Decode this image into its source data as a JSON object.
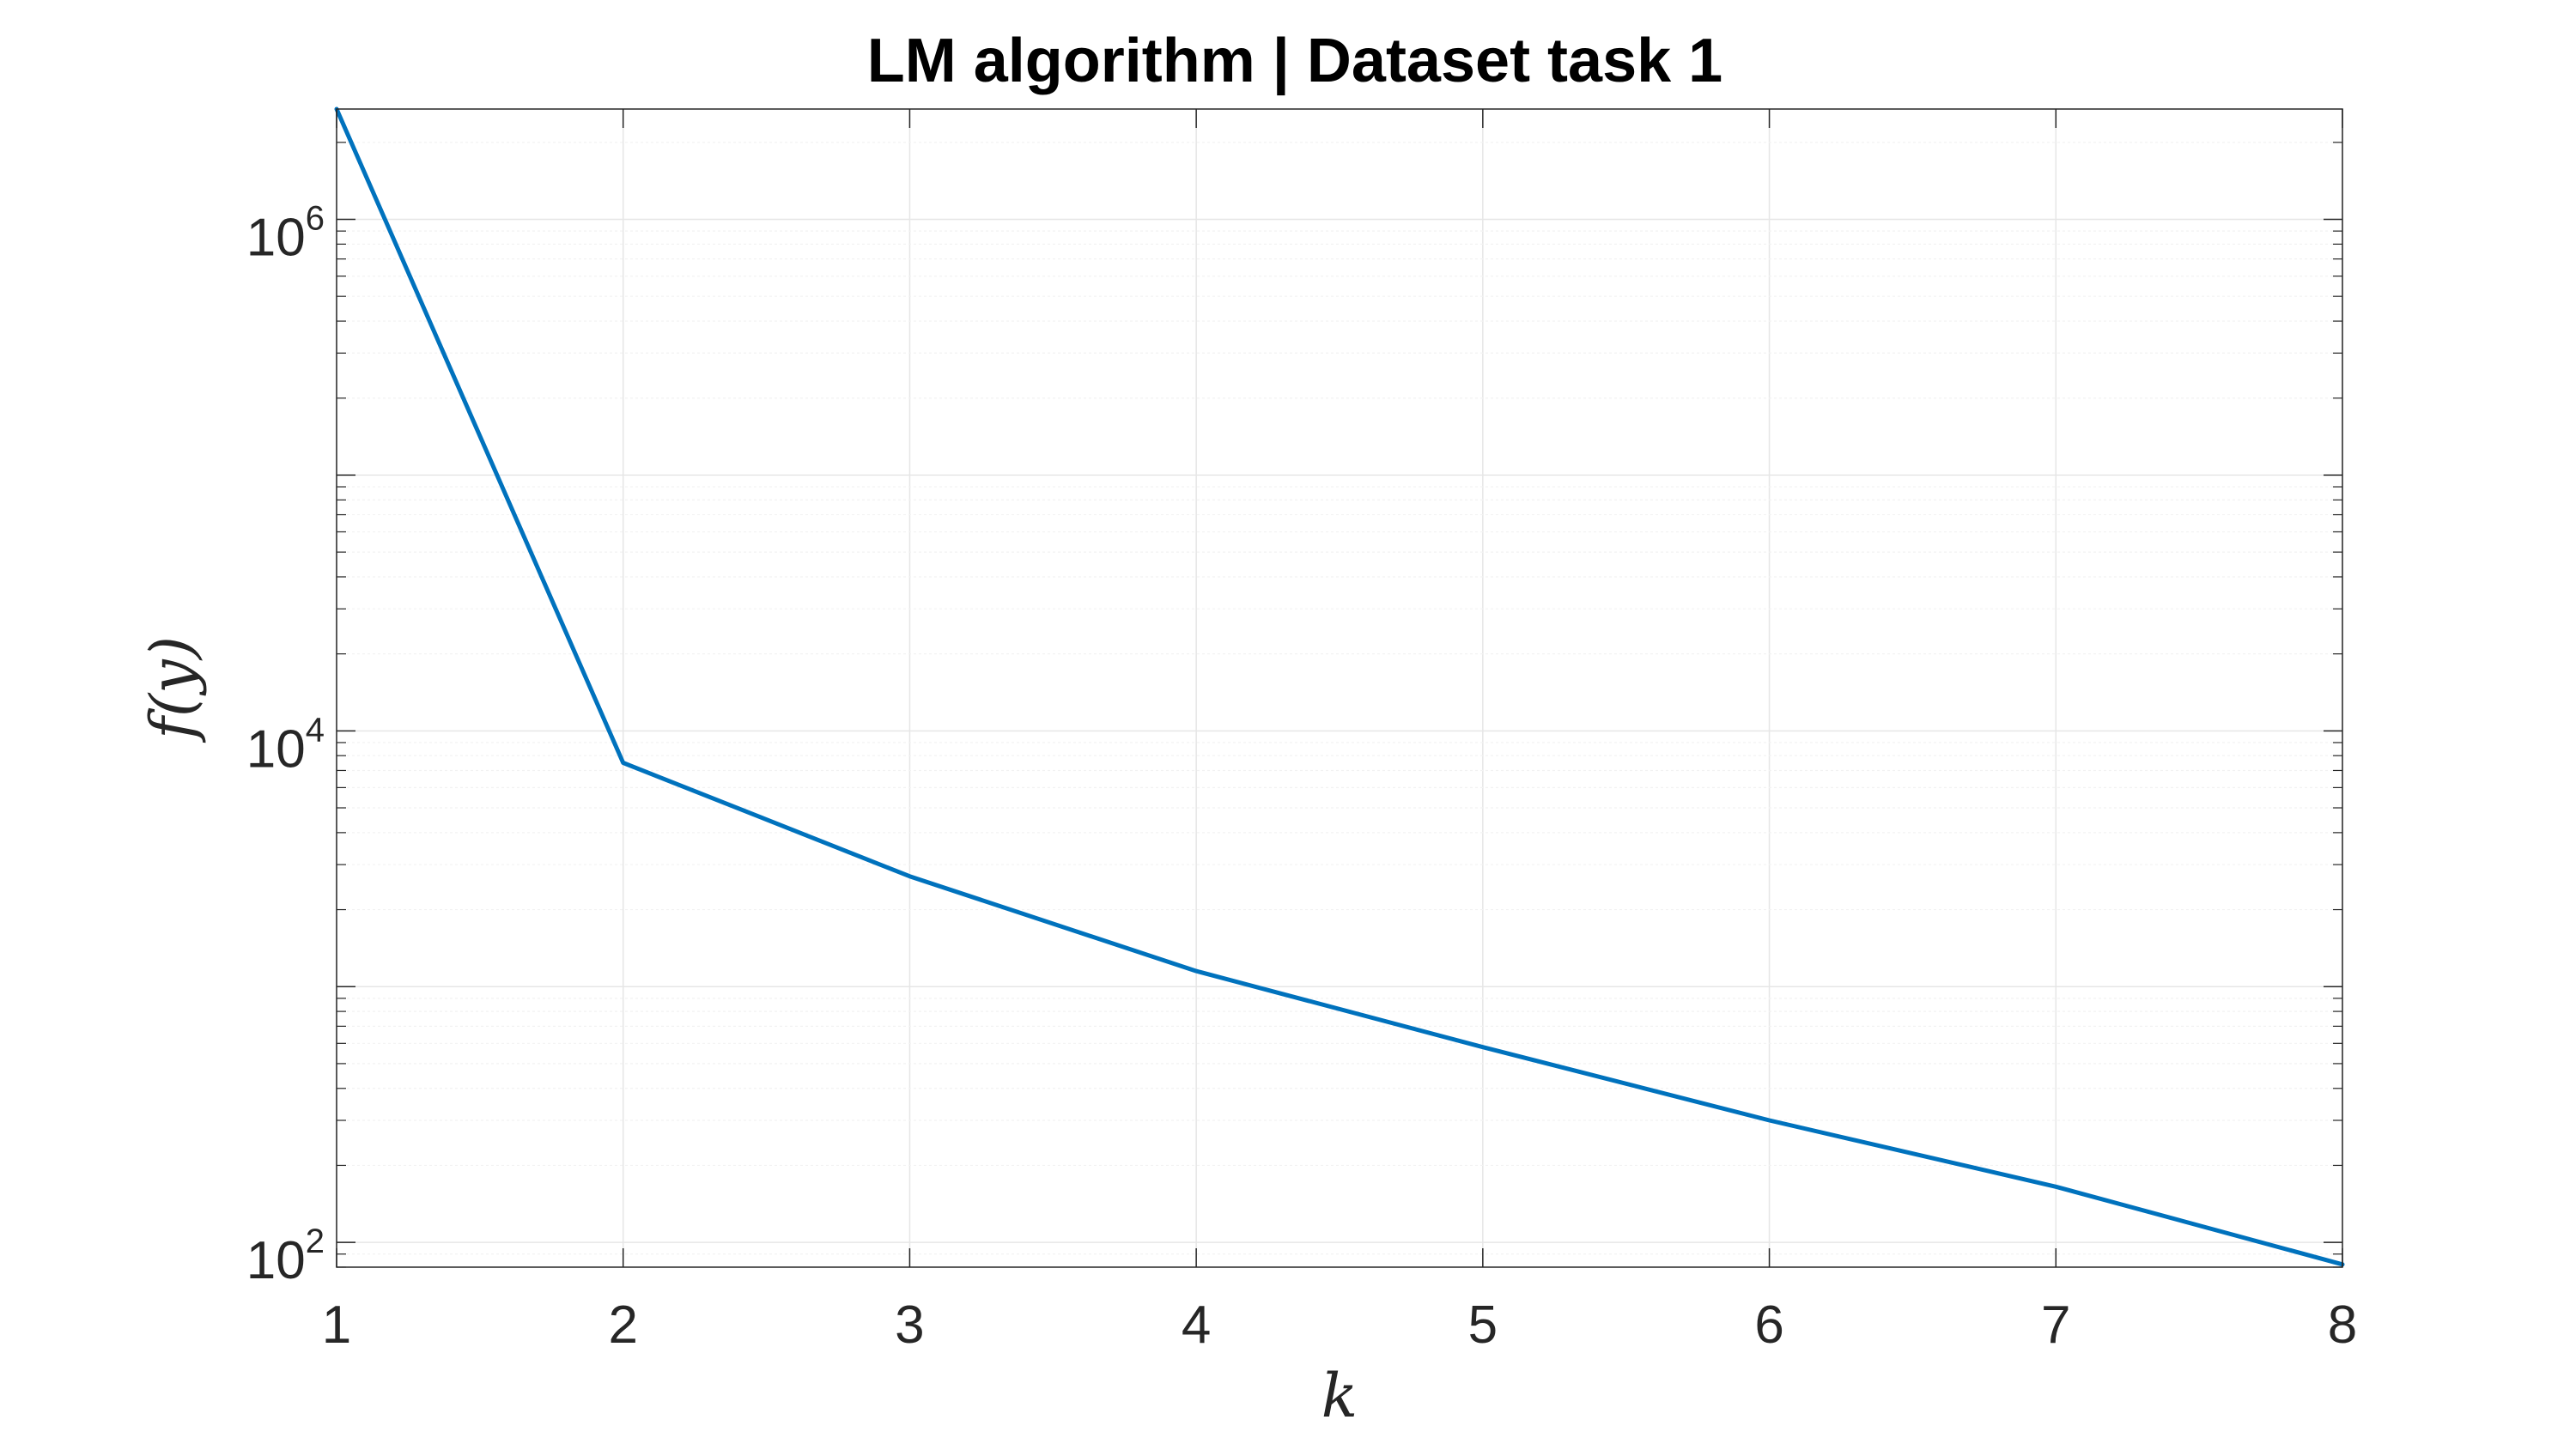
{
  "chart_data": {
    "type": "line",
    "title": "LM algorithm | Dataset task 1",
    "xlabel": "k",
    "ylabel": "f(y)",
    "xlim": [
      1,
      8
    ],
    "ylim": [
      80,
      2700000
    ],
    "yscale": "log",
    "grid": true,
    "xticks": [
      1,
      2,
      3,
      4,
      5,
      6,
      7,
      8
    ],
    "yticks": [
      {
        "value": 100,
        "base": "10",
        "exp": "2"
      },
      {
        "value": 10000,
        "base": "10",
        "exp": "4"
      },
      {
        "value": 1000000,
        "base": "10",
        "exp": "6"
      }
    ],
    "series": [
      {
        "color": "#0072BD",
        "x": [
          1,
          2,
          3,
          4,
          5,
          6,
          7,
          8
        ],
        "y": [
          2700000,
          7500,
          2700,
          1150,
          580,
          300,
          165,
          82
        ]
      }
    ]
  }
}
